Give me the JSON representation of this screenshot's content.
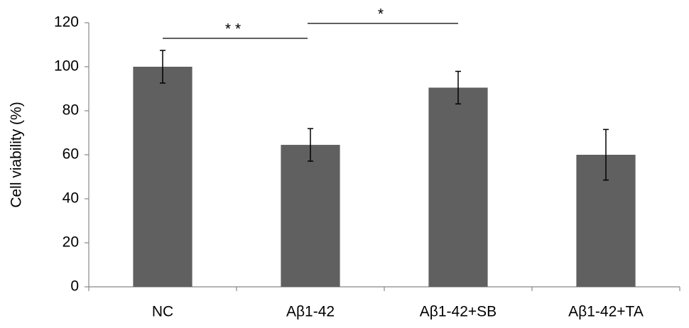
{
  "chart_data": {
    "type": "bar",
    "y_label": "Cell viability (%)",
    "categories": [
      "NC",
      "Aβ1-42",
      "Aβ1-42+SB",
      "Aβ1-42+TA"
    ],
    "values": [
      100,
      64.5,
      90.5,
      60
    ],
    "errors": [
      7.4,
      7.4,
      7.4,
      11.5
    ],
    "color": "#606060",
    "ylim": [
      0,
      120
    ],
    "yticks": [
      0,
      20,
      40,
      60,
      80,
      100,
      120
    ],
    "grid": false,
    "annotations": [
      {
        "text": "**"
      },
      {
        "text": "*"
      }
    ]
  }
}
